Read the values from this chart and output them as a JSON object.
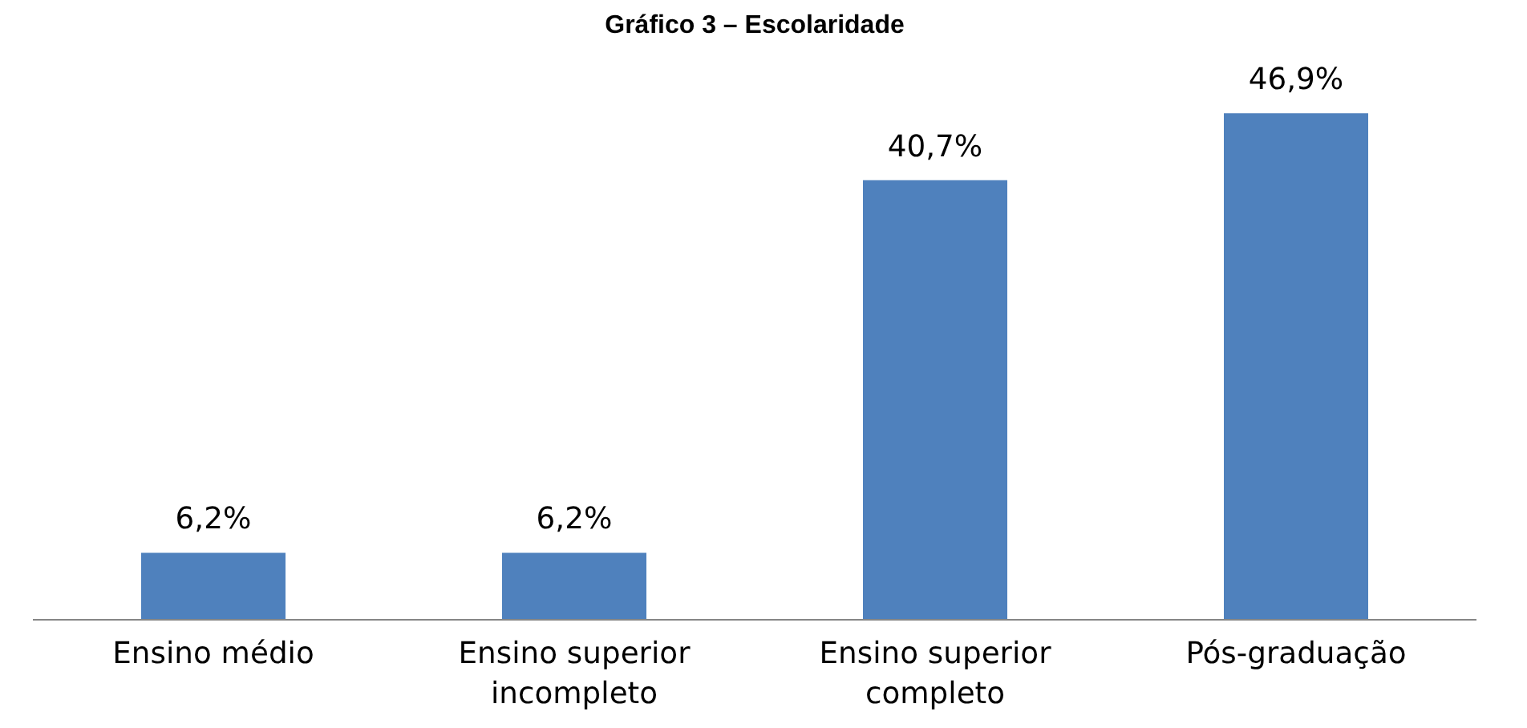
{
  "chart_data": {
    "type": "bar",
    "title": "Gráfico 3 – Escolaridade",
    "categories": [
      "Ensino médio",
      "Ensino superior incompleto",
      "Ensino superior completo",
      "Pós-graduação"
    ],
    "values": [
      6.2,
      6.2,
      40.7,
      46.9
    ],
    "value_labels": [
      "6,2%",
      "6,2%",
      "40,7%",
      "46,9%"
    ],
    "color": "#4f81bd"
  }
}
